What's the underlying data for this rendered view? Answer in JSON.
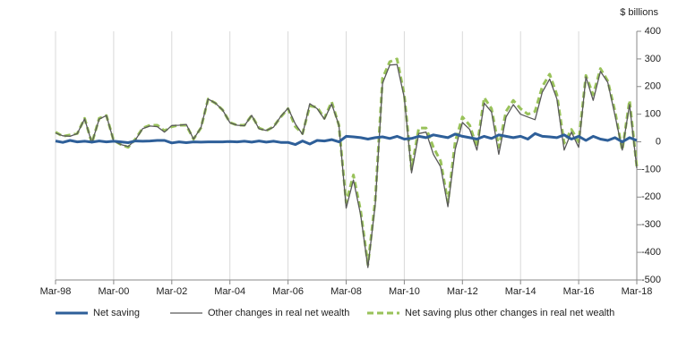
{
  "chart_data": {
    "type": "line",
    "y_axis_label": "$ billions",
    "categories": [
      "Mar-98",
      null,
      null,
      null,
      null,
      null,
      null,
      null,
      "Mar-00",
      null,
      null,
      null,
      null,
      null,
      null,
      null,
      "Mar-02",
      null,
      null,
      null,
      null,
      null,
      null,
      null,
      "Mar-04",
      null,
      null,
      null,
      null,
      null,
      null,
      null,
      "Mar-06",
      null,
      null,
      null,
      null,
      null,
      null,
      null,
      "Mar-08",
      null,
      null,
      null,
      null,
      null,
      null,
      null,
      "Mar-10",
      null,
      null,
      null,
      null,
      null,
      null,
      null,
      "Mar-12",
      null,
      null,
      null,
      null,
      null,
      null,
      null,
      "Mar-14",
      null,
      null,
      null,
      null,
      null,
      null,
      null,
      "Mar-16",
      null,
      null,
      null,
      null,
      null,
      null,
      null,
      "Mar-18"
    ],
    "series": [
      {
        "name": "Net saving",
        "color": "#2e5f99",
        "values": [
          3,
          -2,
          5,
          0,
          2,
          -1,
          3,
          0,
          2,
          0,
          -3,
          3,
          2,
          3,
          5,
          5,
          -4,
          0,
          -3,
          0,
          -1,
          0,
          0,
          0,
          1,
          0,
          2,
          -1,
          3,
          -1,
          2,
          -2,
          -2,
          -10,
          3,
          -8,
          5,
          3,
          8,
          0,
          20,
          18,
          15,
          10,
          15,
          18,
          12,
          20,
          10,
          12,
          20,
          15,
          25,
          20,
          15,
          28,
          20,
          15,
          10,
          20,
          12,
          25,
          20,
          15,
          20,
          10,
          30,
          20,
          18,
          15,
          25,
          10,
          20,
          5,
          20,
          10,
          5,
          15,
          0,
          15,
          5
        ]
      },
      {
        "name": "Other changes in real net wealth",
        "color": "#595959",
        "values": [
          32,
          22,
          20,
          30,
          83,
          -4,
          82,
          95,
          3,
          -10,
          -17,
          7,
          48,
          57,
          55,
          35,
          59,
          60,
          63,
          10,
          51,
          155,
          140,
          115,
          69,
          60,
          58,
          96,
          47,
          41,
          53,
          92,
          122,
          65,
          27,
          138,
          120,
          82,
          137,
          60,
          -240,
          -138,
          -265,
          -455,
          -225,
          212,
          278,
          280,
          160,
          -112,
          30,
          35,
          -45,
          -90,
          -235,
          -28,
          70,
          45,
          -30,
          140,
          108,
          -45,
          90,
          135,
          100,
          90,
          80,
          180,
          227,
          155,
          -30,
          35,
          -20,
          235,
          150,
          255,
          215,
          95,
          -30,
          135,
          -95
        ]
      },
      {
        "name": "Net saving plus other changes in real net wealth",
        "color": "#99c25a",
        "values": [
          35,
          20,
          25,
          30,
          85,
          -5,
          85,
          95,
          5,
          -10,
          -20,
          10,
          50,
          60,
          60,
          40,
          55,
          60,
          60,
          10,
          50,
          155,
          140,
          115,
          70,
          60,
          60,
          95,
          50,
          40,
          55,
          90,
          120,
          55,
          30,
          130,
          125,
          85,
          145,
          60,
          -220,
          -120,
          -250,
          -445,
          -210,
          230,
          290,
          300,
          170,
          -100,
          50,
          50,
          -20,
          -70,
          -220,
          0,
          90,
          60,
          -20,
          160,
          120,
          -20,
          110,
          150,
          120,
          100,
          110,
          200,
          245,
          170,
          -5,
          45,
          0,
          240,
          170,
          265,
          220,
          110,
          -30,
          150,
          -90
        ]
      }
    ],
    "ylim": [
      -500,
      400
    ],
    "yticks": [
      -500,
      -400,
      -300,
      -200,
      -100,
      0,
      100,
      200,
      300,
      400
    ],
    "grid": "x",
    "legend": "bottom"
  }
}
